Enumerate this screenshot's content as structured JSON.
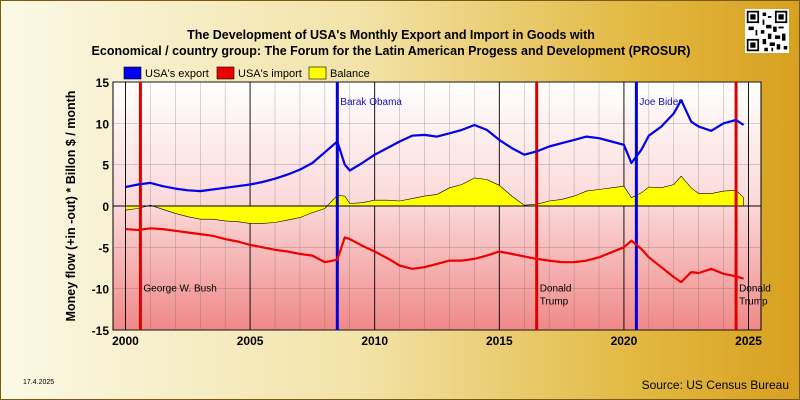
{
  "chart_data": {
    "type": "line",
    "title_line1": "The Development of USA's Monthly Export and Import in Goods with",
    "title_line2": "Economical / country group: The Forum for the Latin American Progess and Development (PROSUR)",
    "ylabel": "Money flow (+in -out) * Billon $ / month",
    "xlabel": "",
    "xlim": [
      1999.5,
      2025.5
    ],
    "ylim": [
      -15,
      15
    ],
    "x_ticks": [
      2000,
      2005,
      2010,
      2015,
      2020,
      2025
    ],
    "y_ticks": [
      -15,
      -10,
      -5,
      0,
      5,
      10,
      15
    ],
    "grid": true,
    "legend_position": "top-left",
    "series": [
      {
        "name": "USA's export",
        "color": "#0000ee",
        "x": [
          2000.0,
          2000.5,
          2001.0,
          2001.5,
          2002.0,
          2002.5,
          2003.0,
          2003.5,
          2004.0,
          2004.5,
          2005.0,
          2005.5,
          2006.0,
          2006.5,
          2007.0,
          2007.5,
          2008.0,
          2008.5,
          2008.8,
          2009.0,
          2009.5,
          2010.0,
          2010.5,
          2011.0,
          2011.5,
          2012.0,
          2012.5,
          2013.0,
          2013.5,
          2014.0,
          2014.5,
          2015.0,
          2015.5,
          2016.0,
          2016.5,
          2017.0,
          2017.5,
          2018.0,
          2018.5,
          2019.0,
          2019.5,
          2020.0,
          2020.3,
          2020.7,
          2021.0,
          2021.5,
          2022.0,
          2022.3,
          2022.7,
          2023.0,
          2023.5,
          2024.0,
          2024.5,
          2024.8
        ],
        "y": [
          2.3,
          2.6,
          2.8,
          2.4,
          2.1,
          1.9,
          1.8,
          2.0,
          2.2,
          2.4,
          2.6,
          2.9,
          3.3,
          3.8,
          4.4,
          5.2,
          6.5,
          7.8,
          5.0,
          4.3,
          5.2,
          6.2,
          7.0,
          7.8,
          8.5,
          8.6,
          8.4,
          8.8,
          9.2,
          9.8,
          9.2,
          8.0,
          7.0,
          6.2,
          6.6,
          7.2,
          7.6,
          8.0,
          8.4,
          8.2,
          7.8,
          7.4,
          5.2,
          6.8,
          8.5,
          9.6,
          11.2,
          12.8,
          10.2,
          9.6,
          9.1,
          10.0,
          10.4,
          9.8
        ]
      },
      {
        "name": "USA's import",
        "color": "#ee0000",
        "x": [
          2000.0,
          2000.5,
          2001.0,
          2001.5,
          2002.0,
          2002.5,
          2003.0,
          2003.5,
          2004.0,
          2004.5,
          2005.0,
          2005.5,
          2006.0,
          2006.5,
          2007.0,
          2007.5,
          2008.0,
          2008.5,
          2008.8,
          2009.0,
          2009.5,
          2010.0,
          2010.5,
          2011.0,
          2011.5,
          2012.0,
          2012.5,
          2013.0,
          2013.5,
          2014.0,
          2014.5,
          2015.0,
          2015.5,
          2016.0,
          2016.5,
          2017.0,
          2017.5,
          2018.0,
          2018.5,
          2019.0,
          2019.5,
          2020.0,
          2020.3,
          2020.7,
          2021.0,
          2021.5,
          2022.0,
          2022.3,
          2022.7,
          2023.0,
          2023.5,
          2024.0,
          2024.5,
          2024.8
        ],
        "y": [
          -2.8,
          -2.9,
          -2.7,
          -2.8,
          -3.0,
          -3.2,
          -3.4,
          -3.6,
          -4.0,
          -4.3,
          -4.7,
          -5.0,
          -5.3,
          -5.5,
          -5.8,
          -6.0,
          -6.8,
          -6.5,
          -3.8,
          -4.0,
          -4.8,
          -5.5,
          -6.3,
          -7.2,
          -7.6,
          -7.4,
          -7.0,
          -6.6,
          -6.6,
          -6.4,
          -6.0,
          -5.5,
          -5.8,
          -6.1,
          -6.4,
          -6.6,
          -6.8,
          -6.8,
          -6.6,
          -6.2,
          -5.6,
          -5.0,
          -4.2,
          -5.2,
          -6.2,
          -7.4,
          -8.6,
          -9.2,
          -8.0,
          -8.1,
          -7.6,
          -8.2,
          -8.5,
          -8.8
        ]
      },
      {
        "name": "Balance",
        "color": "#ffff00",
        "x": [
          2000.0,
          2000.5,
          2001.0,
          2001.5,
          2002.0,
          2002.5,
          2003.0,
          2003.5,
          2004.0,
          2004.5,
          2005.0,
          2005.5,
          2006.0,
          2006.5,
          2007.0,
          2007.5,
          2008.0,
          2008.5,
          2008.8,
          2009.0,
          2009.5,
          2010.0,
          2010.5,
          2011.0,
          2011.5,
          2012.0,
          2012.5,
          2013.0,
          2013.5,
          2014.0,
          2014.5,
          2015.0,
          2015.5,
          2016.0,
          2016.5,
          2017.0,
          2017.5,
          2018.0,
          2018.5,
          2019.0,
          2019.5,
          2020.0,
          2020.3,
          2020.7,
          2021.0,
          2021.5,
          2022.0,
          2022.3,
          2022.7,
          2023.0,
          2023.5,
          2024.0,
          2024.5,
          2024.8
        ],
        "y": [
          -0.5,
          -0.3,
          0.1,
          -0.4,
          -0.9,
          -1.3,
          -1.6,
          -1.6,
          -1.8,
          -1.9,
          -2.1,
          -2.1,
          -2.0,
          -1.7,
          -1.4,
          -0.8,
          -0.3,
          1.3,
          1.2,
          0.3,
          0.4,
          0.7,
          0.7,
          0.6,
          0.9,
          1.2,
          1.4,
          2.2,
          2.6,
          3.4,
          3.2,
          2.5,
          1.2,
          0.1,
          0.2,
          0.6,
          0.8,
          1.2,
          1.8,
          2.0,
          2.2,
          2.4,
          1.0,
          1.6,
          2.3,
          2.2,
          2.6,
          3.6,
          2.2,
          1.5,
          1.5,
          1.8,
          1.9,
          1.0
        ]
      }
    ],
    "events": [
      {
        "x": 2000.6,
        "label": "George W. Bush",
        "color": "#dd0000",
        "label_pos": "bottom"
      },
      {
        "x": 2008.5,
        "label": "Barak Obama",
        "color": "#0000dd",
        "label_pos": "top"
      },
      {
        "x": 2016.5,
        "label": "Donald Trump",
        "color": "#dd0000",
        "label_pos": "bottom"
      },
      {
        "x": 2020.5,
        "label": "Joe Biden",
        "color": "#0000dd",
        "label_pos": "top"
      },
      {
        "x": 2024.5,
        "label": "Donald Trump",
        "color": "#dd0000",
        "label_pos": "bottom"
      }
    ],
    "date_stamp": "17.4.2025",
    "source": "Source: US Census Bureau"
  }
}
